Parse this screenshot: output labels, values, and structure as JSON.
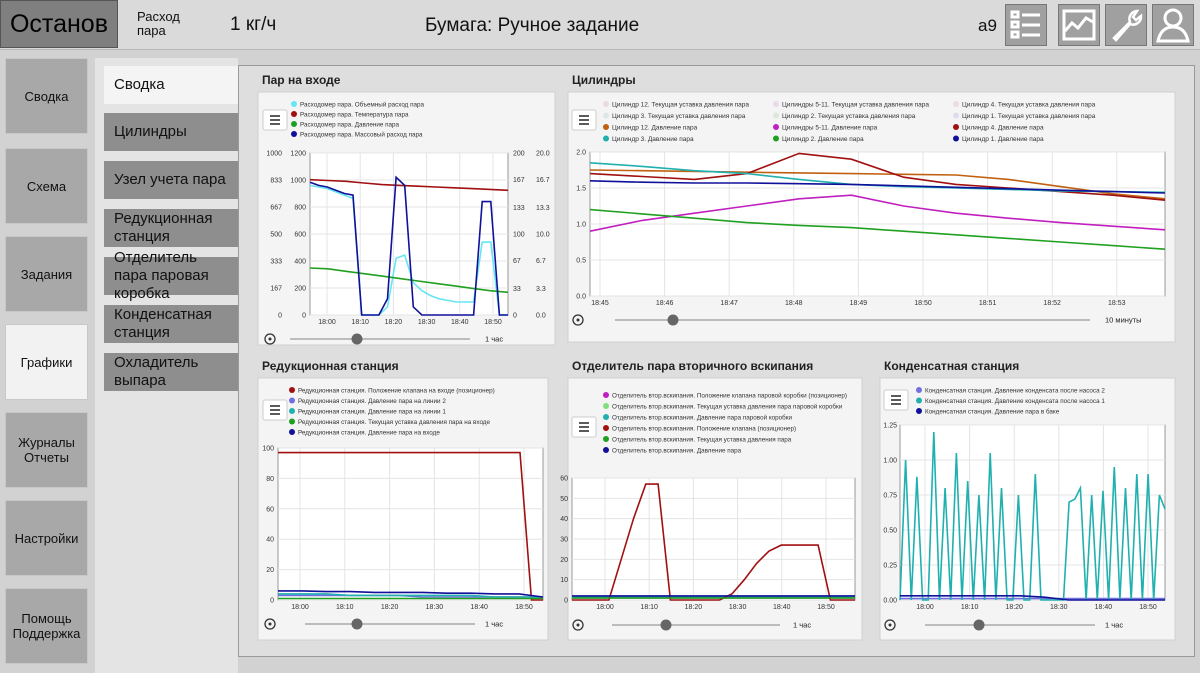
{
  "header": {
    "status": "Останов",
    "flow_label": "Расход пара",
    "flow_value": "1 кг/ч",
    "paper": "Бумага: Ручное задание",
    "user": "a9"
  },
  "nav": [
    "Сводка",
    "Схема",
    "Задания",
    "Графики",
    "Журналы Отчеты",
    "Настройки",
    "Помощь Поддержка"
  ],
  "nav_selected": 3,
  "subnav": [
    "Сводка",
    "Цилиндры",
    "Узел учета пара",
    "Редукционная станция",
    "Отделитель пара паровая коробка",
    "Конденсатная станция",
    "Охладитель выпара"
  ],
  "subnav_selected": 0,
  "charts": [
    {
      "type": "line",
      "title": "Пар на входе",
      "time_span": "1 час",
      "xticks": [
        "18:00",
        "18:10",
        "18:20",
        "18:30",
        "18:40",
        "18:50"
      ],
      "y_axes": [
        {
          "ylim": [
            0,
            1000
          ],
          "yticks": [
            0,
            167,
            333,
            500,
            667,
            833,
            1000
          ]
        },
        {
          "ylim": [
            0,
            1200
          ],
          "yticks": [
            0,
            200,
            400,
            600,
            800,
            1000,
            1200
          ]
        },
        {
          "ylim": [
            0,
            200
          ],
          "yticks": [
            0,
            33,
            67,
            100,
            133,
            167,
            200
          ]
        },
        {
          "ylim": [
            0,
            20
          ],
          "yticks": [
            {
              "value": 0,
              "label": "0.0"
            },
            3.3,
            6.7,
            {
              "value": 10,
              "label": "10.0"
            },
            13.3,
            16.7,
            {
              "value": 20,
              "label": "20.0"
            }
          ]
        }
      ],
      "series": [
        {
          "name": "Расходомер пара. Объемный расход пара",
          "color": "#66e6f2",
          "values": [
            800,
            790,
            780,
            760,
            740,
            720,
            0,
            0,
            0,
            50,
            350,
            370,
            200,
            150,
            120,
            100,
            90,
            80,
            80,
            80,
            450,
            450,
            0,
            0
          ]
        },
        {
          "name": "Расходомер пара. Температура пара",
          "color": "#a01010",
          "values": [
            835,
            830,
            825,
            815,
            805,
            800,
            795,
            790,
            785,
            780,
            775,
            770
          ]
        },
        {
          "name": "Расходомер пара. Давление пара",
          "color": "#20a020",
          "values": [
            290,
            285,
            270,
            255,
            240,
            225,
            210,
            195,
            180,
            165,
            150,
            140
          ]
        },
        {
          "name": "Расходомер пара. Массовый расход пара",
          "color": "#10109a",
          "values": [
            820,
            800,
            790,
            770,
            750,
            740,
            0,
            0,
            0,
            100,
            850,
            800,
            50,
            0,
            0,
            0,
            0,
            0,
            0,
            0,
            700,
            700,
            0,
            0
          ]
        }
      ]
    },
    {
      "type": "line",
      "title": "Цилиндры",
      "time_span": "10 минуты",
      "xticks": [
        "18:45",
        "18:46",
        "18:47",
        "18:48",
        "18:49",
        "18:50",
        "18:51",
        "18:52",
        "18:53"
      ],
      "y_axes": [
        {
          "ylim": [
            0,
            2
          ],
          "yticks": [
            {
              "value": 0,
              "label": "0.0"
            },
            0.5,
            {
              "value": 1,
              "label": "1.0"
            },
            1.5,
            {
              "value": 2,
              "label": "2.0"
            }
          ]
        }
      ],
      "series": [
        {
          "name": "Цилиндр 12. Текущая уставка давления пара",
          "color": "#e8dcdc"
        },
        {
          "name": "Цилиндры 5-11. Текущая уставка давления пара",
          "color": "#e8dce8"
        },
        {
          "name": "Цилиндр 4. Текущая уставка давления пара",
          "color": "#ecdcdc"
        },
        {
          "name": "Цилиндр 3. Текущая уставка давления пара",
          "color": "#dce8e8"
        },
        {
          "name": "Цилиндр 2. Текущая уставка давления пара",
          "color": "#dce8dc"
        },
        {
          "name": "Цилиндр 1. Текущая уставка давления пара",
          "color": "#dcdcec"
        },
        {
          "name": "Цилиндр 12. Давление пара",
          "color": "#c06010",
          "values": [
            1.75,
            1.74,
            1.73,
            1.72,
            1.71,
            1.7,
            1.69,
            1.68,
            1.62,
            1.52,
            1.42,
            1.35
          ]
        },
        {
          "name": "Цилиндры 5-11. Давление пара",
          "color": "#c020c0",
          "values": [
            0.9,
            1.05,
            1.15,
            1.25,
            1.35,
            1.4,
            1.25,
            1.15,
            1.08,
            1.02,
            0.97,
            0.92
          ]
        },
        {
          "name": "Цилиндр 4. Давление пара",
          "color": "#a01010",
          "values": [
            1.7,
            1.66,
            1.62,
            1.7,
            1.98,
            1.9,
            1.65,
            1.55,
            1.5,
            1.45,
            1.4,
            1.33
          ]
        },
        {
          "name": "Цилиндр 3. Давление пара",
          "color": "#20b0b0",
          "values": [
            1.85,
            1.8,
            1.74,
            1.7,
            1.62,
            1.55,
            1.52,
            1.5,
            1.48,
            1.46,
            1.45,
            1.44
          ]
        },
        {
          "name": "Цилиндр 2. Давление пара",
          "color": "#20a020",
          "values": [
            1.2,
            1.14,
            1.08,
            1.02,
            0.98,
            0.95,
            0.9,
            0.85,
            0.8,
            0.75,
            0.7,
            0.65
          ]
        },
        {
          "name": "Цилиндр 1. Давление пара",
          "color": "#10109a",
          "values": [
            1.6,
            1.58,
            1.57,
            1.57,
            1.56,
            1.55,
            1.53,
            1.51,
            1.49,
            1.47,
            1.45,
            1.43
          ]
        }
      ]
    },
    {
      "type": "line",
      "title": "Редукционная станция",
      "time_span": "1 час",
      "xticks": [
        "18:00",
        "18:10",
        "18:20",
        "18:30",
        "18:40",
        "18:50"
      ],
      "y_axes": [
        {
          "ylim": [
            0,
            100
          ],
          "yticks": [
            0,
            20,
            40,
            60,
            80,
            100
          ]
        }
      ],
      "series": [
        {
          "name": "Редукционная станция. Положение клапана на входе (позиционер)",
          "color": "#a01010",
          "values": [
            97,
            97,
            97,
            97,
            97,
            97,
            97,
            97,
            97,
            97,
            97,
            97,
            97,
            97,
            97,
            97,
            97,
            97,
            97,
            97,
            97,
            97,
            0,
            0
          ]
        },
        {
          "name": "Редукционная станция. Давление пара на линии 2",
          "color": "#7070e0",
          "values": [
            3,
            3,
            3,
            3,
            3,
            3,
            2,
            2,
            2,
            2,
            2,
            2
          ]
        },
        {
          "name": "Редукционная станция. Давление пара на линии 1",
          "color": "#20b0b0",
          "values": [
            4,
            4,
            4,
            3,
            3,
            3,
            3,
            3,
            3,
            2,
            2,
            2
          ]
        },
        {
          "name": "Редукционная станция. Текущая уставка давления пара на входе",
          "color": "#20a020",
          "values": [
            1,
            1,
            1,
            1,
            1,
            1,
            1,
            1,
            1,
            1,
            1,
            1
          ]
        },
        {
          "name": "Редукционная станция. Давление пара на входе",
          "color": "#10109a",
          "values": [
            6,
            6,
            5.5,
            5.5,
            5,
            5,
            5,
            4.5,
            4.5,
            4,
            4,
            2
          ]
        }
      ]
    },
    {
      "type": "line",
      "title": "Отделитель пара вторичного вскипания",
      "time_span": "1 час",
      "xticks": [
        "18:00",
        "18:10",
        "18:20",
        "18:30",
        "18:40",
        "18:50"
      ],
      "y_axes": [
        {
          "ylim": [
            0,
            60
          ],
          "yticks": [
            0,
            10,
            20,
            30,
            40,
            50,
            60
          ]
        }
      ],
      "series": [
        {
          "name": "Отделитель втор.вскипания. Положение клапана паровой коробки (позиционер)",
          "color": "#c020c0",
          "values": [
            1,
            1,
            1,
            1,
            1,
            1,
            1,
            1,
            1,
            1,
            1,
            1
          ]
        },
        {
          "name": "Отделитель втор.вскипания. Текущая уставка давления пара паровой коробки",
          "color": "#80e080",
          "values": [
            1,
            1,
            1,
            1,
            1,
            1,
            1,
            1,
            1,
            1,
            1,
            1
          ]
        },
        {
          "name": "Отделитель втор.вскипания. Давление пара паровой коробки",
          "color": "#20b0b0",
          "values": [
            1.5,
            1.5,
            1.5,
            1.5,
            1.5,
            1.5,
            1.5,
            1.5,
            1.5,
            1.5,
            1.5,
            1.5
          ]
        },
        {
          "name": "Отделитель втор.вскипания. Положение клапана (позиционер)",
          "color": "#a01010",
          "values": [
            0,
            0,
            0,
            0,
            20,
            40,
            57,
            57,
            0,
            0,
            0,
            0,
            0,
            3,
            10,
            18,
            24,
            27,
            27,
            27,
            27,
            0,
            0,
            0
          ]
        },
        {
          "name": "Отделитель втор.вскипания. Текущая уставка давления пара",
          "color": "#20a020",
          "values": [
            1,
            1,
            1,
            1,
            1,
            1,
            1,
            1,
            1,
            1,
            1,
            1
          ]
        },
        {
          "name": "Отделитель втор.вскипания. Давление пара",
          "color": "#10109a",
          "values": [
            2,
            2,
            2,
            2,
            2,
            2,
            2,
            2,
            2,
            2,
            2,
            2
          ]
        }
      ]
    },
    {
      "type": "line",
      "title": "Конденсатная станция",
      "time_span": "1 час",
      "xticks": [
        "18:00",
        "18:10",
        "18:20",
        "18:30",
        "18:40",
        "18:50"
      ],
      "y_axes": [
        {
          "ylim": [
            0,
            1.25
          ],
          "yticks": [
            {
              "value": 0,
              "label": "0.00"
            },
            0.25,
            {
              "value": 0.5,
              "label": "0.50"
            },
            0.75,
            {
              "value": 1,
              "label": "1.00"
            },
            1.25
          ]
        }
      ],
      "series": [
        {
          "name": "Конденсатная станция. Давление конденсата после насоса 2",
          "color": "#7070e0",
          "values": [
            0.01,
            0.01,
            0.01,
            0.01,
            0.01,
            0.01
          ]
        },
        {
          "name": "Конденсатная станция. Давление конденсата после насоса 1",
          "color": "#20b0b0",
          "values": [
            0,
            1,
            0,
            0.88,
            0,
            0,
            1.2,
            0,
            0.8,
            0,
            1.05,
            0,
            0.85,
            0,
            0.75,
            0,
            1.05,
            0,
            0.8,
            0,
            0,
            0.75,
            0,
            0,
            0.9,
            0,
            0,
            0,
            0,
            0,
            0.7,
            0.72,
            0.8,
            0,
            0.75,
            0,
            0.78,
            0,
            0.95,
            0,
            0.8,
            0,
            0.9,
            0,
            0.9,
            0,
            0.75,
            0.65
          ]
        },
        {
          "name": "Конденсатная станция. Давление пара в баке",
          "color": "#10109a",
          "values": [
            0.03,
            0.03,
            0.03,
            0.03,
            0.03,
            0.03,
            0.02,
            0,
            0,
            0,
            0,
            0
          ]
        }
      ]
    }
  ]
}
